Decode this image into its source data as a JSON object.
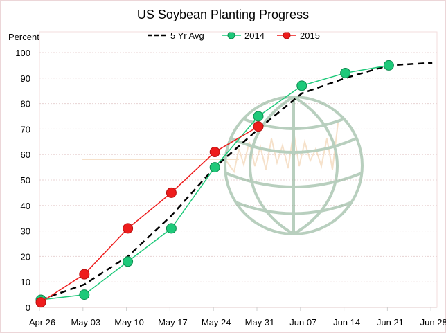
{
  "chart_data": {
    "type": "line",
    "title": "US Soybean Planting Progress",
    "ylabel": "Percent",
    "xlabel": "",
    "ylim": [
      0,
      100
    ],
    "yticks": [
      "0",
      "10",
      "20",
      "30",
      "40",
      "50",
      "60",
      "70",
      "80",
      "90",
      "100"
    ],
    "categories": [
      "Apr 26",
      "May 03",
      "May 10",
      "May 17",
      "May 24",
      "May 31",
      "Jun 07",
      "Jun 14",
      "Jun 21",
      "Jun 28"
    ],
    "grid": true,
    "legend": "top-center",
    "series": [
      {
        "name": "5 Yr Avg",
        "color": "#000000",
        "style": "dashed",
        "values": [
          3,
          9,
          20,
          36,
          55,
          70,
          84,
          90,
          95,
          96
        ]
      },
      {
        "name": "2014",
        "color": "#1ec97a",
        "style": "solid-markers",
        "values": [
          3,
          5,
          18,
          31,
          55,
          75,
          87,
          92,
          95,
          null
        ]
      },
      {
        "name": "2015",
        "color": "#ee1c1c",
        "style": "solid-markers",
        "values": [
          2,
          13,
          31,
          45,
          61,
          71,
          null,
          null,
          null,
          null
        ]
      }
    ]
  }
}
